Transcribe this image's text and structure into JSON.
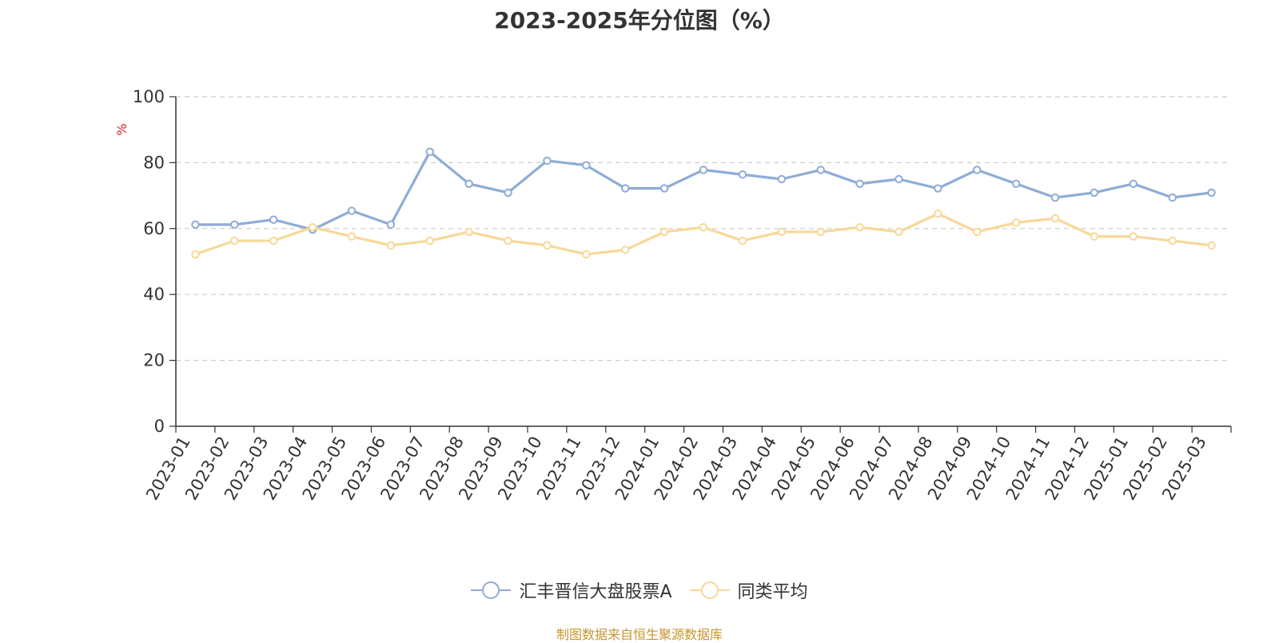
{
  "chart_data": {
    "type": "line",
    "title": "2023-2025年分位图（%）",
    "ylabel": "%",
    "ylim": [
      0,
      100
    ],
    "yticks": [
      "0",
      "20",
      "40",
      "60",
      "80",
      "100"
    ],
    "grid": true,
    "legend_placement": "bottom-center",
    "categories": [
      "2023-01",
      "2023-02",
      "2023-03",
      "2023-04",
      "2023-05",
      "2023-06",
      "2023-07",
      "2023-08",
      "2023-09",
      "2023-10",
      "2023-11",
      "2023-12",
      "2024-01",
      "2024-02",
      "2024-03",
      "2024-04",
      "2024-05",
      "2024-06",
      "2024-07",
      "2024-08",
      "2024-09",
      "2024-10",
      "2024-11",
      "2024-12",
      "2025-01",
      "2025-02",
      "2025-03"
    ],
    "series": [
      {
        "name": "汇丰晋信大盘股票A",
        "color": "#8eacd6",
        "values": [
          61.2,
          61.2,
          62.7,
          59.7,
          65.4,
          61.2,
          83.3,
          73.6,
          70.9,
          80.6,
          79.2,
          72.2,
          72.2,
          77.8,
          76.4,
          75.0,
          77.8,
          73.6,
          75.0,
          72.2,
          77.8,
          73.6,
          69.4,
          70.9,
          73.6,
          69.4,
          70.9
        ]
      },
      {
        "name": "同类平均",
        "color": "#f8d898",
        "values": [
          52.2,
          56.3,
          56.3,
          60.4,
          57.6,
          54.9,
          56.3,
          59.0,
          56.3,
          54.9,
          52.2,
          53.5,
          59.0,
          60.4,
          56.3,
          59.0,
          59.0,
          60.4,
          59.0,
          64.5,
          59.0,
          61.8,
          63.1,
          57.6,
          57.6,
          56.3,
          54.9
        ]
      }
    ]
  },
  "source": {
    "text": "制图数据来自恒生聚源数据库",
    "color": "#c8962e"
  },
  "ylabel_color": "#e02020"
}
